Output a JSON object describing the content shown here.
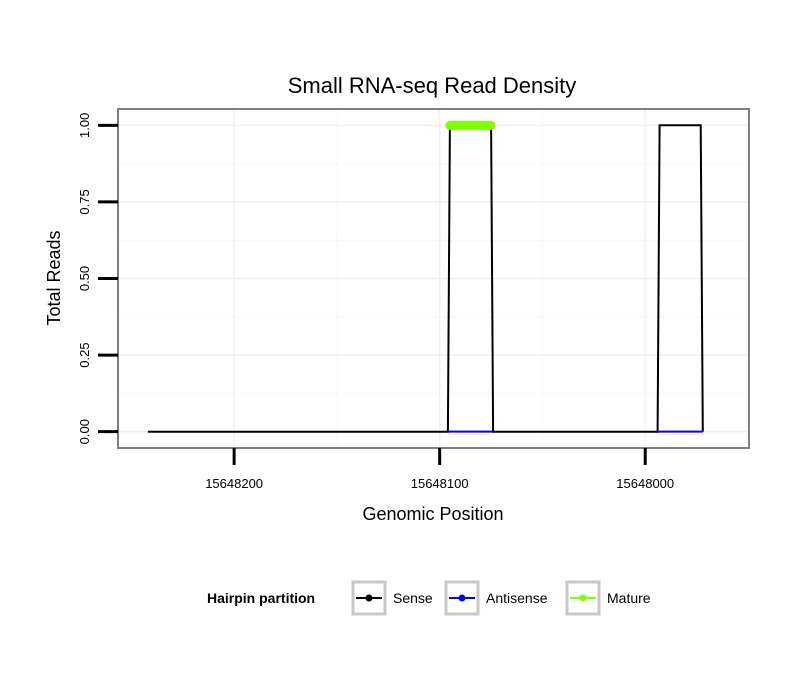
{
  "chart_data": {
    "type": "line",
    "title": "Small RNA-seq Read Density",
    "xlabel": "Genomic Position",
    "ylabel": "Total Reads",
    "x_reversed": true,
    "xlim": [
      15648256,
      15647950
    ],
    "ylim": [
      -0.05,
      1.05
    ],
    "x_ticks": [
      15648200,
      15648100,
      15648000
    ],
    "x_tick_labels": [
      "15648200",
      "15648100",
      "15648000"
    ],
    "y_ticks": [
      0,
      0.25,
      0.5,
      0.75,
      1.0
    ],
    "y_tick_labels": [
      "0.00",
      "0.25",
      "0.50",
      "0.75",
      "1.00"
    ],
    "grid": true,
    "series": [
      {
        "name": "Sense",
        "color": "#000000",
        "x": [
          15648242,
          15648096,
          15648095,
          15648075,
          15648074,
          15647994,
          15647993,
          15647973,
          15647972
        ],
        "y": [
          0,
          0,
          1,
          1,
          0,
          0,
          1,
          1,
          0
        ]
      },
      {
        "name": "Antisense",
        "color": "#0000ff",
        "x": [
          15648096,
          15648074,
          15647994,
          15647972
        ],
        "y": [
          0,
          0,
          0,
          0
        ]
      },
      {
        "name": "Mature",
        "color": "#7fff00",
        "x": [
          15648095,
          15648075
        ],
        "y": [
          1,
          1
        ]
      }
    ],
    "legend": {
      "title": "Hairpin partition",
      "position": "bottom",
      "items": [
        {
          "label": "Sense",
          "color": "#000000"
        },
        {
          "label": "Antisense",
          "color": "#0000ff"
        },
        {
          "label": "Mature",
          "color": "#7fff00"
        }
      ]
    }
  }
}
